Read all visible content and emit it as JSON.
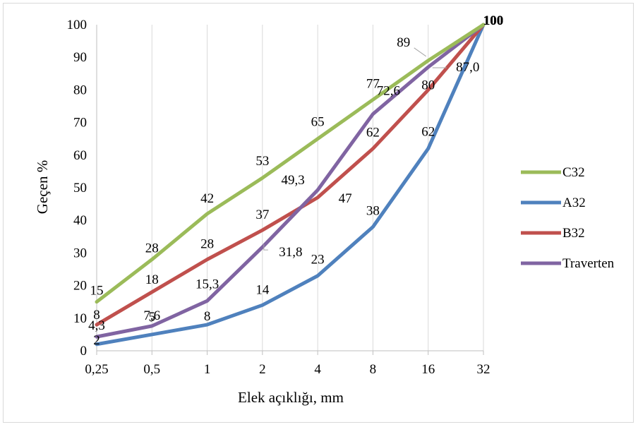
{
  "chart_data": {
    "type": "line",
    "title": "",
    "xlabel": "Elek açıklığı, mm",
    "ylabel": "Geçen %",
    "categories": [
      "0,25",
      "0,5",
      "1",
      "2",
      "4",
      "8",
      "16",
      "32"
    ],
    "ylim": [
      0,
      100
    ],
    "yticks": [
      "0",
      "10",
      "20",
      "30",
      "40",
      "50",
      "60",
      "70",
      "80",
      "90",
      "100"
    ],
    "grid": "vertical",
    "legend_position": "right",
    "series": [
      {
        "name": "C32",
        "color": "#9bbb59",
        "values": [
          15,
          28,
          42,
          53,
          65,
          77,
          89,
          100
        ],
        "labels": [
          "15",
          "28",
          "42",
          "53",
          "65",
          "77",
          "89",
          "100"
        ]
      },
      {
        "name": "A32",
        "color": "#4f81bd",
        "values": [
          2,
          5,
          8,
          14,
          23,
          38,
          62,
          100
        ],
        "labels": [
          "2",
          "5",
          "8",
          "14",
          "23",
          "38",
          "62",
          "100"
        ]
      },
      {
        "name": "B32",
        "color": "#c0504d",
        "values": [
          8,
          18,
          28,
          37,
          47,
          62,
          80,
          100
        ],
        "labels": [
          "8",
          "18",
          "28",
          "37",
          "47",
          "62",
          "80",
          "100"
        ]
      },
      {
        "name": "Traverten",
        "color": "#8064a2",
        "values": [
          4.3,
          7.6,
          15.3,
          31.8,
          49.3,
          72.6,
          87.0,
          100
        ],
        "labels": [
          "4,3",
          "7,6",
          "15,3",
          "31,8",
          "49,3",
          "72,6",
          "87,0",
          "100"
        ]
      }
    ]
  }
}
